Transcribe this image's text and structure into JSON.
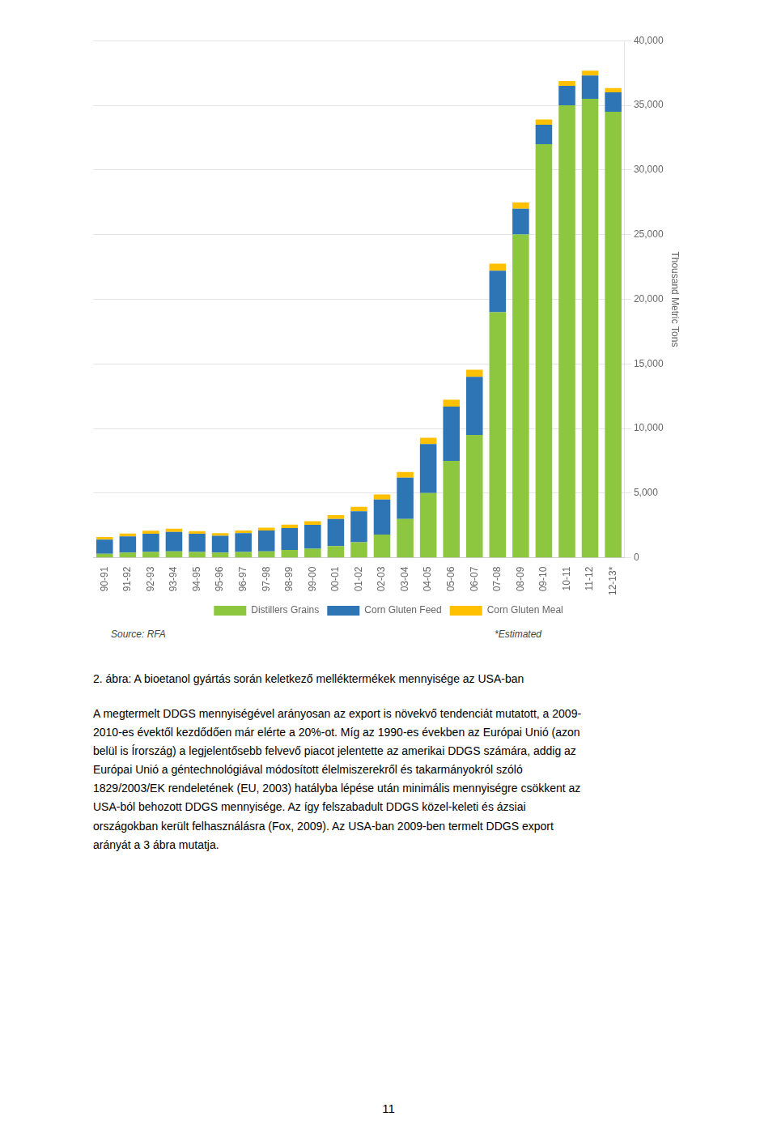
{
  "chart_data": {
    "type": "bar",
    "stacked": true,
    "categories": [
      "90-91",
      "91-92",
      "92-93",
      "93-94",
      "94-95",
      "95-96",
      "96-97",
      "97-98",
      "98-99",
      "99-00",
      "00-01",
      "01-02",
      "02-03",
      "03-04",
      "04-05",
      "05-06",
      "06-07",
      "07-08",
      "08-09",
      "09-10",
      "10-11",
      "11-12",
      "12-13*"
    ],
    "series": [
      {
        "name": "Distillers Grains",
        "color": "#8dc63f",
        "values": [
          300,
          400,
          450,
          500,
          450,
          400,
          450,
          500,
          600,
          700,
          900,
          1200,
          1800,
          3000,
          5000,
          7500,
          9500,
          19000,
          25000,
          32000,
          35000,
          35500,
          34500
        ]
      },
      {
        "name": "Corn Gluten Feed",
        "color": "#2e75b6",
        "values": [
          1100,
          1250,
          1400,
          1500,
          1400,
          1300,
          1450,
          1600,
          1700,
          1850,
          2100,
          2400,
          2700,
          3200,
          3800,
          4200,
          4500,
          3200,
          2000,
          1500,
          1500,
          1800,
          1500
        ]
      },
      {
        "name": "Corn Gluten Meal",
        "color": "#ffc000",
        "values": [
          200,
          220,
          240,
          250,
          210,
          200,
          210,
          230,
          260,
          280,
          300,
          340,
          400,
          430,
          480,
          520,
          550,
          550,
          480,
          400,
          380,
          380,
          330
        ]
      }
    ],
    "y_label": "Thousand Metric Tons",
    "ylim": [
      0,
      40000
    ],
    "yticks": [
      0,
      {
        "value": 5000,
        "label": "5,000"
      },
      {
        "value": 10000,
        "label": "10,000"
      },
      {
        "value": 15000,
        "label": "15,000"
      },
      {
        "value": 20000,
        "label": "20,000"
      },
      {
        "value": 25000,
        "label": "25,000"
      },
      {
        "value": 30000,
        "label": "30,000"
      },
      {
        "value": 35000,
        "label": "35,000"
      },
      {
        "value": 40000,
        "label": "40,000"
      }
    ],
    "grid": true,
    "legend": "bottom",
    "annotations": [
      "Source: RFA",
      "*Estimated",
      "2. ábra: A bioetanol gyártás során keletkező melléktermékek mennyisége az USA-ban",
      "A megtermelt DDGS mennyiségével arányosan az export is növekvő tendenciát mutatott, a 2009-\n2010-es évektől kezdődően már elérte a 20%-ot. Míg az 1990-es években az Európai Unió (azon\nbelül is Írország) a legjelentősebb felvevő piacot jelentette az amerikai DDGS számára, addig az\nEurópai Unió a géntechnológiával módosított élelmiszerekről és takarmányokról szóló\n1829/2003/EK rendeletének (EU, 2003) hatályba lépése után minimális mennyiségre csökkent az\nUSA-ból behozott DDGS mennyisége. Az így felszabadult DDGS közel-keleti és ázsiai\nországokban került felhasználásra (Fox, 2009). Az USA-ban 2009-ben termelt DDGS export\narányát a 3 ábra mutatja.",
      "11"
    ]
  }
}
